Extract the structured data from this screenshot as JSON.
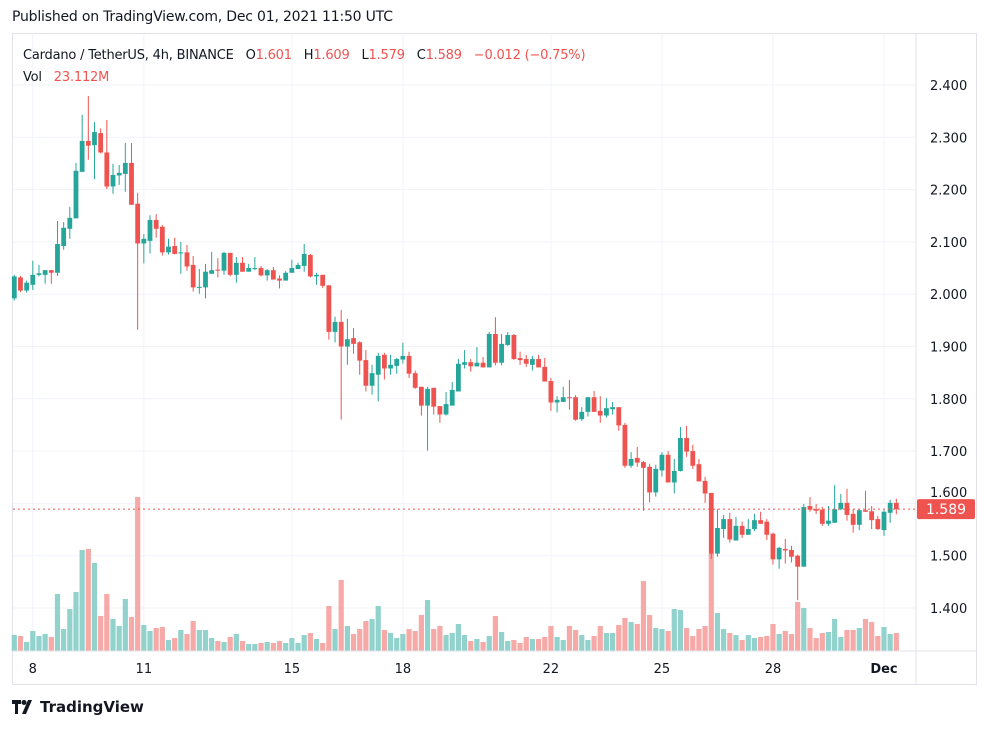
{
  "published": "Published on TradingView.com, Dec 01, 2021 11:50 UTC",
  "legend": {
    "symbol": "Cardano / TetherUS, 4h, BINANCE",
    "o_label": "O",
    "o": "1.601",
    "h_label": "H",
    "h": "1.609",
    "l_label": "L",
    "l": "1.579",
    "c_label": "C",
    "c": "1.589",
    "change": "−0.012 (−0.75%)",
    "vol_label": "Vol",
    "vol": "23.112M"
  },
  "footer": {
    "brand": "TradingView"
  },
  "colors": {
    "up": "#26a69a",
    "down": "#ef5350",
    "up_vol": "#92d2cc",
    "down_vol": "#f7a9a7",
    "grid": "#f0f3fa",
    "border": "#e0e3eb"
  },
  "chart_data": {
    "type": "candlestick",
    "title": "Cardano / TetherUS, 4h, BINANCE",
    "interval": "4h",
    "ylim": [
      1.32,
      2.46
    ],
    "y_ticks": [
      {
        "value": 2.4,
        "label": "2.400"
      },
      {
        "value": 2.3,
        "label": "2.300"
      },
      {
        "value": 2.2,
        "label": "2.200"
      },
      {
        "value": 2.1,
        "label": "2.100"
      },
      {
        "value": 2.0,
        "label": "2.000"
      },
      {
        "value": 1.9,
        "label": "1.900"
      },
      {
        "value": 1.8,
        "label": "1.800"
      },
      {
        "value": 1.7,
        "label": "1.700"
      },
      {
        "value": 1.6,
        "label": "1.600"
      },
      {
        "value": 1.5,
        "label": "1.500"
      },
      {
        "value": 1.4,
        "label": "1.400"
      }
    ],
    "x_ticks": [
      {
        "index": 3,
        "label": "8"
      },
      {
        "index": 21,
        "label": "11"
      },
      {
        "index": 45,
        "label": "15"
      },
      {
        "index": 63,
        "label": "18"
      },
      {
        "index": 87,
        "label": "22"
      },
      {
        "index": 105,
        "label": "25"
      },
      {
        "index": 123,
        "label": "28"
      },
      {
        "index": 141,
        "label": "Dec"
      }
    ],
    "last_price": {
      "value": 1.589,
      "label": "1.589"
    },
    "ohlc_fields": [
      "open",
      "high",
      "low",
      "close"
    ],
    "candles": [
      [
        1.992,
        2.037,
        1.988,
        2.034
      ],
      [
        2.032,
        2.035,
        2.004,
        2.007
      ],
      [
        2.007,
        2.026,
        2.003,
        2.022
      ],
      [
        2.018,
        2.064,
        2.008,
        2.037
      ],
      [
        2.037,
        2.056,
        2.034,
        2.04
      ],
      [
        2.037,
        2.046,
        2.02,
        2.046
      ],
      [
        2.046,
        2.046,
        2.02,
        2.041
      ],
      [
        2.041,
        2.14,
        2.035,
        2.096
      ],
      [
        2.092,
        2.138,
        2.085,
        2.127
      ],
      [
        2.125,
        2.167,
        2.106,
        2.146
      ],
      [
        2.145,
        2.251,
        2.145,
        2.236
      ],
      [
        2.234,
        2.343,
        2.234,
        2.293
      ],
      [
        2.293,
        2.379,
        2.257,
        2.284
      ],
      [
        2.285,
        2.329,
        2.22,
        2.31
      ],
      [
        2.308,
        2.317,
        2.269,
        2.271
      ],
      [
        2.271,
        2.333,
        2.201,
        2.206
      ],
      [
        2.206,
        2.249,
        2.192,
        2.228
      ],
      [
        2.227,
        2.247,
        2.209,
        2.232
      ],
      [
        2.23,
        2.289,
        2.196,
        2.251
      ],
      [
        2.251,
        2.289,
        2.171,
        2.171
      ],
      [
        2.173,
        2.194,
        1.932,
        2.097
      ],
      [
        2.097,
        2.115,
        2.059,
        2.106
      ],
      [
        2.102,
        2.151,
        2.078,
        2.142
      ],
      [
        2.142,
        2.153,
        2.108,
        2.125
      ],
      [
        2.129,
        2.132,
        2.074,
        2.08
      ],
      [
        2.08,
        2.106,
        2.076,
        2.091
      ],
      [
        2.092,
        2.108,
        2.076,
        2.077
      ],
      [
        2.078,
        2.1,
        2.039,
        2.08
      ],
      [
        2.08,
        2.094,
        2.045,
        2.053
      ],
      [
        2.056,
        2.073,
        2.005,
        2.013
      ],
      [
        2.012,
        2.048,
        2.001,
        2.014
      ],
      [
        2.013,
        2.058,
        1.992,
        2.043
      ],
      [
        2.039,
        2.081,
        2.039,
        2.046
      ],
      [
        2.047,
        2.069,
        2.032,
        2.045
      ],
      [
        2.045,
        2.081,
        2.037,
        2.079
      ],
      [
        2.079,
        2.079,
        2.034,
        2.037
      ],
      [
        2.037,
        2.071,
        2.022,
        2.06
      ],
      [
        2.06,
        2.071,
        2.043,
        2.043
      ],
      [
        2.043,
        2.058,
        2.043,
        2.05
      ],
      [
        2.048,
        2.071,
        2.046,
        2.05
      ],
      [
        2.05,
        2.054,
        2.034,
        2.036
      ],
      [
        2.036,
        2.048,
        2.026,
        2.046
      ],
      [
        2.046,
        2.052,
        2.028,
        2.028
      ],
      [
        2.03,
        2.036,
        2.011,
        2.026
      ],
      [
        2.026,
        2.044,
        2.026,
        2.041
      ],
      [
        2.041,
        2.066,
        2.041,
        2.05
      ],
      [
        2.048,
        2.06,
        2.048,
        2.056
      ],
      [
        2.054,
        2.096,
        2.043,
        2.077
      ],
      [
        2.075,
        2.077,
        2.032,
        2.034
      ],
      [
        2.034,
        2.041,
        2.018,
        2.037
      ],
      [
        2.037,
        2.037,
        2.012,
        2.016
      ],
      [
        2.017,
        2.017,
        1.913,
        1.928
      ],
      [
        1.928,
        1.957,
        1.908,
        1.947
      ],
      [
        1.947,
        1.97,
        1.76,
        1.9
      ],
      [
        1.9,
        1.953,
        1.865,
        1.914
      ],
      [
        1.916,
        1.935,
        1.886,
        1.905
      ],
      [
        1.908,
        1.91,
        1.846,
        1.873
      ],
      [
        1.874,
        1.893,
        1.814,
        1.825
      ],
      [
        1.825,
        1.865,
        1.808,
        1.849
      ],
      [
        1.846,
        1.888,
        1.795,
        1.882
      ],
      [
        1.884,
        1.888,
        1.837,
        1.858
      ],
      [
        1.858,
        1.884,
        1.846,
        1.865
      ],
      [
        1.863,
        1.878,
        1.848,
        1.876
      ],
      [
        1.875,
        1.907,
        1.867,
        1.882
      ],
      [
        1.882,
        1.89,
        1.84,
        1.848
      ],
      [
        1.849,
        1.854,
        1.819,
        1.821
      ],
      [
        1.823,
        1.823,
        1.768,
        1.787
      ],
      [
        1.787,
        1.823,
        1.701,
        1.819
      ],
      [
        1.821,
        1.821,
        1.77,
        1.785
      ],
      [
        1.786,
        1.786,
        1.754,
        1.77
      ],
      [
        1.77,
        1.813,
        1.768,
        1.79
      ],
      [
        1.787,
        1.832,
        1.787,
        1.817
      ],
      [
        1.814,
        1.876,
        1.814,
        1.867
      ],
      [
        1.865,
        1.893,
        1.858,
        1.87
      ],
      [
        1.87,
        1.876,
        1.852,
        1.862
      ],
      [
        1.862,
        1.899,
        1.862,
        1.869
      ],
      [
        1.869,
        1.88,
        1.86,
        1.86
      ],
      [
        1.86,
        1.928,
        1.86,
        1.924
      ],
      [
        1.924,
        1.956,
        1.864,
        1.869
      ],
      [
        1.869,
        1.924,
        1.864,
        1.905
      ],
      [
        1.903,
        1.928,
        1.901,
        1.922
      ],
      [
        1.922,
        1.924,
        1.874,
        1.876
      ],
      [
        1.878,
        1.89,
        1.865,
        1.874
      ],
      [
        1.876,
        1.884,
        1.861,
        1.867
      ],
      [
        1.865,
        1.882,
        1.854,
        1.876
      ],
      [
        1.876,
        1.884,
        1.86,
        1.86
      ],
      [
        1.861,
        1.878,
        1.833,
        1.833
      ],
      [
        1.834,
        1.84,
        1.777,
        1.793
      ],
      [
        1.793,
        1.805,
        1.774,
        1.798
      ],
      [
        1.794,
        1.823,
        1.794,
        1.803
      ],
      [
        1.803,
        1.836,
        1.779,
        1.802
      ],
      [
        1.803,
        1.807,
        1.758,
        1.76
      ],
      [
        1.761,
        1.784,
        1.758,
        1.775
      ],
      [
        1.775,
        1.803,
        1.766,
        1.803
      ],
      [
        1.803,
        1.815,
        1.775,
        1.775
      ],
      [
        1.777,
        1.805,
        1.754,
        1.768
      ],
      [
        1.768,
        1.801,
        1.764,
        1.782
      ],
      [
        1.78,
        1.794,
        1.77,
        1.784
      ],
      [
        1.784,
        1.784,
        1.739,
        1.749
      ],
      [
        1.75,
        1.754,
        1.668,
        1.672
      ],
      [
        1.672,
        1.698,
        1.668,
        1.685
      ],
      [
        1.687,
        1.708,
        1.67,
        1.678
      ],
      [
        1.679,
        1.681,
        1.586,
        1.668
      ],
      [
        1.67,
        1.676,
        1.602,
        1.621
      ],
      [
        1.621,
        1.674,
        1.613,
        1.666
      ],
      [
        1.663,
        1.698,
        1.651,
        1.693
      ],
      [
        1.693,
        1.7,
        1.64,
        1.64
      ],
      [
        1.64,
        1.685,
        1.619,
        1.662
      ],
      [
        1.662,
        1.746,
        1.661,
        1.725
      ],
      [
        1.725,
        1.748,
        1.689,
        1.699
      ],
      [
        1.7,
        1.712,
        1.666,
        1.672
      ],
      [
        1.675,
        1.685,
        1.642,
        1.642
      ],
      [
        1.643,
        1.651,
        1.601,
        1.619
      ],
      [
        1.62,
        1.62,
        1.494,
        1.504
      ],
      [
        1.504,
        1.589,
        1.498,
        1.553
      ],
      [
        1.551,
        1.578,
        1.534,
        1.57
      ],
      [
        1.57,
        1.582,
        1.525,
        1.531
      ],
      [
        1.529,
        1.574,
        1.529,
        1.557
      ],
      [
        1.557,
        1.565,
        1.534,
        1.54
      ],
      [
        1.54,
        1.57,
        1.54,
        1.551
      ],
      [
        1.551,
        1.58,
        1.547,
        1.568
      ],
      [
        1.568,
        1.584,
        1.561,
        1.561
      ],
      [
        1.565,
        1.57,
        1.53,
        1.54
      ],
      [
        1.542,
        1.544,
        1.483,
        1.493
      ],
      [
        1.493,
        1.517,
        1.475,
        1.515
      ],
      [
        1.513,
        1.532,
        1.485,
        1.51
      ],
      [
        1.511,
        1.519,
        1.487,
        1.498
      ],
      [
        1.5,
        1.502,
        1.415,
        1.479
      ],
      [
        1.479,
        1.599,
        1.479,
        1.593
      ],
      [
        1.595,
        1.612,
        1.584,
        1.588
      ],
      [
        1.589,
        1.599,
        1.58,
        1.586
      ],
      [
        1.588,
        1.593,
        1.557,
        1.561
      ],
      [
        1.561,
        1.595,
        1.557,
        1.567
      ],
      [
        1.563,
        1.635,
        1.563,
        1.589
      ],
      [
        1.589,
        1.618,
        1.587,
        1.601
      ],
      [
        1.601,
        1.628,
        1.567,
        1.578
      ],
      [
        1.58,
        1.589,
        1.544,
        1.559
      ],
      [
        1.559,
        1.589,
        1.549,
        1.587
      ],
      [
        1.587,
        1.624,
        1.584,
        1.584
      ],
      [
        1.585,
        1.595,
        1.551,
        1.568
      ],
      [
        1.57,
        1.576,
        1.549,
        1.551
      ],
      [
        1.549,
        1.587,
        1.538,
        1.584
      ],
      [
        1.582,
        1.607,
        1.563,
        1.601
      ],
      [
        1.601,
        1.609,
        1.579,
        1.589
      ]
    ],
    "volume_unit": "M",
    "volumes": [
      20.5,
      19.3,
      11.6,
      25.7,
      19.3,
      21.8,
      18.0,
      73.2,
      28.2,
      53.9,
      75.8,
      129.7,
      131.0,
      113.0,
      44.9,
      73.2,
      41.1,
      32.1,
      66.8,
      43.7,
      197.7,
      33.4,
      25.7,
      29.5,
      30.8,
      14.1,
      16.7,
      27.0,
      21.8,
      38.5,
      27.0,
      27.0,
      16.7,
      12.8,
      11.6,
      18.0,
      21.8,
      12.8,
      9.0,
      9.0,
      10.3,
      11.6,
      10.3,
      12.8,
      10.3,
      16.7,
      10.3,
      20.5,
      23.1,
      15.4,
      10.3,
      57.8,
      28.2,
      91.2,
      32.1,
      21.8,
      28.2,
      38.5,
      41.1,
      57.8,
      27.0,
      23.1,
      16.7,
      21.8,
      28.2,
      25.7,
      46.2,
      65.5,
      28.2,
      32.1,
      20.5,
      23.1,
      34.7,
      20.5,
      12.8,
      15.4,
      11.6,
      19.3,
      44.9,
      24.4,
      12.8,
      14.1,
      10.3,
      18.0,
      15.4,
      15.4,
      18.0,
      32.1,
      18.0,
      14.1,
      32.1,
      27.0,
      20.5,
      14.1,
      19.3,
      32.1,
      23.1,
      23.1,
      33.4,
      42.4,
      37.2,
      34.7,
      89.9,
      46.2,
      29.5,
      28.2,
      25.7,
      53.9,
      52.6,
      29.5,
      19.3,
      28.2,
      32.1,
      125.4,
      48.8,
      28.2,
      23.1,
      20.5,
      14.1,
      20.5,
      16.7,
      18.0,
      19.3,
      34.7,
      21.8,
      25.7,
      21.8,
      62.9,
      55.2,
      29.5,
      16.7,
      23.1,
      24.4,
      41.1,
      18.0,
      27.0,
      27.0,
      29.5,
      41.1,
      37.2,
      19.3,
      30.8,
      21.8,
      23.112
    ]
  }
}
